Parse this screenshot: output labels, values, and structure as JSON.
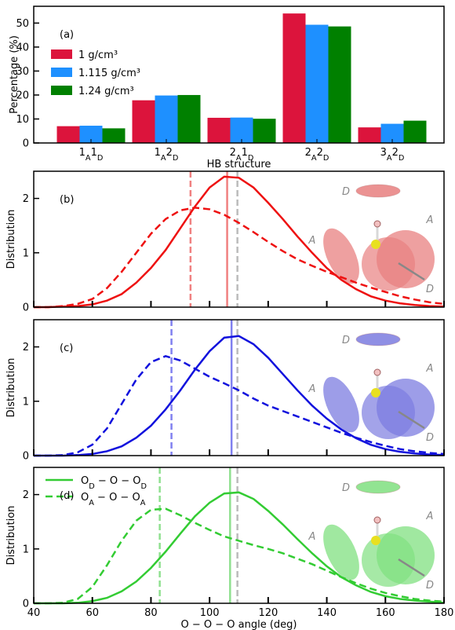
{
  "chart_data": [
    {
      "type": "bar",
      "label": "(a)",
      "x_label": "HB structure",
      "y_label": "Percentage (%)",
      "categories": [
        "1A1D",
        "1A2D",
        "2A1D",
        "2A2D",
        "3A2D"
      ],
      "series": [
        {
          "name": "1 g/cm³",
          "color": "#dc143c",
          "values": [
            7.0,
            17.8,
            10.5,
            54.0,
            6.5
          ]
        },
        {
          "name": "1.115 g/cm³",
          "color": "#1e90ff",
          "values": [
            7.2,
            19.8,
            10.6,
            49.3,
            8.0
          ]
        },
        {
          "name": "1.24 g/cm³",
          "color": "#008000",
          "values": [
            6.1,
            20.0,
            10.1,
            48.6,
            9.3
          ]
        }
      ],
      "ylim": [
        0,
        57
      ],
      "yticks": [
        0,
        10,
        20,
        30,
        40,
        50
      ]
    },
    {
      "type": "line",
      "label": "(b)",
      "y_label": "Distribution",
      "x": [
        40,
        45,
        50,
        55,
        60,
        65,
        70,
        75,
        80,
        85,
        90,
        95,
        100,
        105,
        110,
        115,
        120,
        125,
        130,
        135,
        140,
        145,
        150,
        155,
        160,
        165,
        170,
        175,
        180
      ],
      "series": [
        {
          "color": "#ee1111",
          "dash": false,
          "values": [
            0,
            0,
            0.01,
            0.02,
            0.05,
            0.12,
            0.24,
            0.45,
            0.72,
            1.05,
            1.45,
            1.85,
            2.2,
            2.4,
            2.38,
            2.2,
            1.92,
            1.62,
            1.3,
            1.0,
            0.72,
            0.5,
            0.33,
            0.2,
            0.12,
            0.07,
            0.04,
            0.02,
            0.01
          ]
        },
        {
          "color": "#ee1111",
          "dash": true,
          "values": [
            0,
            0,
            0.02,
            0.06,
            0.15,
            0.35,
            0.65,
            1.0,
            1.35,
            1.62,
            1.78,
            1.83,
            1.8,
            1.7,
            1.55,
            1.38,
            1.2,
            1.03,
            0.88,
            0.76,
            0.65,
            0.55,
            0.45,
            0.36,
            0.28,
            0.2,
            0.14,
            0.09,
            0.06
          ]
        }
      ],
      "reference_lines": [
        {
          "x": 93.5,
          "color": "#f08080",
          "dash": true
        },
        {
          "x": 106,
          "color": "#f08080",
          "dash": false
        },
        {
          "x": 109.5,
          "color": "#bbbbbb",
          "dash": true
        }
      ],
      "blob_color": "#e88080",
      "xlim": [
        40,
        180
      ],
      "xticks": [
        40,
        60,
        80,
        100,
        120,
        140,
        160,
        180
      ],
      "xtick_labels": false,
      "ylim": [
        0,
        2.5
      ],
      "yticks": [
        0,
        1,
        2
      ],
      "inset_labels": [
        "D",
        "A",
        "A",
        "D"
      ]
    },
    {
      "type": "line",
      "label": "(c)",
      "y_label": "Distribution",
      "x": [
        40,
        45,
        50,
        55,
        60,
        65,
        70,
        75,
        80,
        85,
        90,
        95,
        100,
        105,
        110,
        115,
        120,
        125,
        130,
        135,
        140,
        145,
        150,
        155,
        160,
        165,
        170,
        175,
        180
      ],
      "series": [
        {
          "color": "#1111dd",
          "dash": false,
          "values": [
            0,
            0,
            0,
            0.01,
            0.03,
            0.08,
            0.17,
            0.33,
            0.55,
            0.85,
            1.2,
            1.58,
            1.92,
            2.17,
            2.2,
            2.05,
            1.8,
            1.5,
            1.2,
            0.92,
            0.68,
            0.48,
            0.32,
            0.2,
            0.12,
            0.07,
            0.04,
            0.02,
            0.01
          ]
        },
        {
          "color": "#1111dd",
          "dash": true,
          "values": [
            0,
            0,
            0.01,
            0.06,
            0.2,
            0.5,
            0.95,
            1.4,
            1.72,
            1.83,
            1.75,
            1.6,
            1.45,
            1.33,
            1.2,
            1.05,
            0.92,
            0.82,
            0.72,
            0.62,
            0.52,
            0.42,
            0.33,
            0.25,
            0.18,
            0.12,
            0.08,
            0.05,
            0.03
          ]
        }
      ],
      "reference_lines": [
        {
          "x": 87,
          "color": "#8080f0",
          "dash": true
        },
        {
          "x": 107.5,
          "color": "#8080f0",
          "dash": false
        },
        {
          "x": 109.5,
          "color": "#bbbbbb",
          "dash": true
        }
      ],
      "blob_color": "#7c7ce0",
      "xlim": [
        40,
        180
      ],
      "xticks": [
        40,
        60,
        80,
        100,
        120,
        140,
        160,
        180
      ],
      "xtick_labels": false,
      "ylim": [
        0,
        2.5
      ],
      "yticks": [
        0,
        1,
        2
      ],
      "inset_labels": [
        "D",
        "A",
        "A",
        "D"
      ]
    },
    {
      "type": "line",
      "label": "(d)",
      "y_label": "Distribution",
      "x_label": "O − O − O angle (deg)",
      "x": [
        40,
        45,
        50,
        55,
        60,
        65,
        70,
        75,
        80,
        85,
        90,
        95,
        100,
        105,
        110,
        115,
        120,
        125,
        130,
        135,
        140,
        145,
        150,
        155,
        160,
        165,
        170,
        175,
        180
      ],
      "series": [
        {
          "name": "OD − O − OD",
          "color": "#33cc33",
          "dash": false,
          "values": [
            0,
            0,
            0,
            0.01,
            0.04,
            0.1,
            0.22,
            0.4,
            0.65,
            0.95,
            1.28,
            1.6,
            1.85,
            2.02,
            2.04,
            1.92,
            1.7,
            1.45,
            1.18,
            0.92,
            0.68,
            0.48,
            0.33,
            0.21,
            0.13,
            0.08,
            0.05,
            0.03,
            0.01
          ]
        },
        {
          "name": "OA − O − OA",
          "color": "#33cc33",
          "dash": true,
          "values": [
            0,
            0,
            0.01,
            0.08,
            0.3,
            0.7,
            1.15,
            1.52,
            1.72,
            1.74,
            1.62,
            1.48,
            1.35,
            1.23,
            1.15,
            1.07,
            1.0,
            0.92,
            0.82,
            0.72,
            0.6,
            0.48,
            0.37,
            0.27,
            0.19,
            0.13,
            0.08,
            0.05,
            0.03
          ]
        }
      ],
      "reference_lines": [
        {
          "x": 83,
          "color": "#90e090",
          "dash": true
        },
        {
          "x": 107,
          "color": "#90e090",
          "dash": false
        },
        {
          "x": 109.5,
          "color": "#bbbbbb",
          "dash": true
        }
      ],
      "blob_color": "#80e080",
      "xlim": [
        40,
        180
      ],
      "xticks": [
        40,
        60,
        80,
        100,
        120,
        140,
        160,
        180
      ],
      "xtick_labels": true,
      "ylim": [
        0,
        2.5
      ],
      "yticks": [
        0,
        1,
        2
      ],
      "inset_labels": [
        "D",
        "A",
        "A",
        "D"
      ]
    }
  ]
}
